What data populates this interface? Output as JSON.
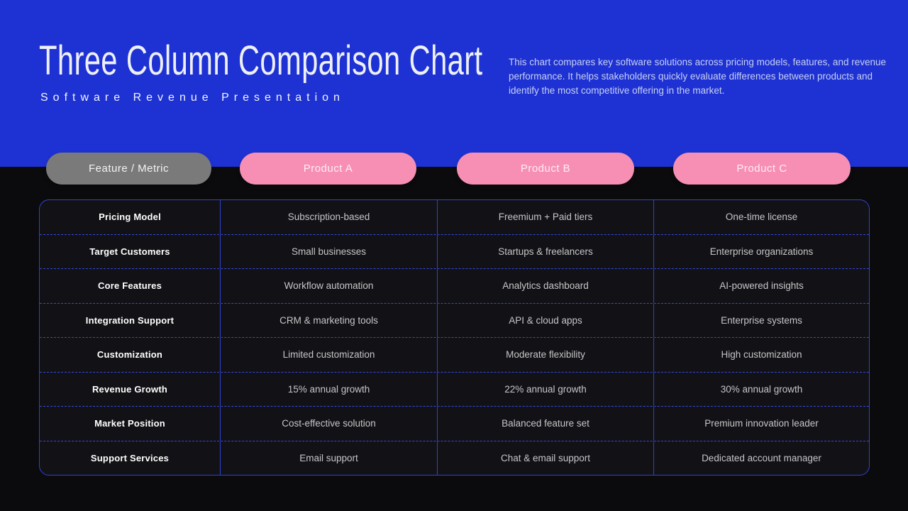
{
  "slide": {
    "title": "Three Column Comparison Chart",
    "subtitle": "Software Revenue Presentation",
    "description": "This chart compares key software solutions across pricing models, features, and revenue performance. It helps stakeholders quickly evaluate differences between products and identify the most competitive offering in the market."
  },
  "headers": {
    "feature": "Feature / Metric",
    "product_a": "Product A",
    "product_b": "Product B",
    "product_c": "Product C"
  },
  "chart_data": {
    "type": "table",
    "title": "Three Column Comparison Chart",
    "subtitle": "Software Revenue Presentation",
    "columns": [
      "Feature / Metric",
      "Product A",
      "Product B",
      "Product C"
    ],
    "rows": [
      [
        "Pricing Model",
        "Subscription-based",
        "Freemium + Paid tiers",
        "One-time license"
      ],
      [
        "Target Customers",
        "Small businesses",
        "Startups & freelancers",
        "Enterprise organizations"
      ],
      [
        "Core Features",
        "Workflow automation",
        "Analytics dashboard",
        "AI-powered insights"
      ],
      [
        "Integration Support",
        "CRM & marketing tools",
        "API & cloud apps",
        "Enterprise systems"
      ],
      [
        "Customization",
        "Limited customization",
        "Moderate flexibility",
        "High customization"
      ],
      [
        "Revenue Growth",
        "15% annual growth",
        "22% annual growth",
        "30% annual growth"
      ],
      [
        "Market Position",
        "Cost-effective solution",
        "Balanced feature set",
        "Premium innovation leader"
      ],
      [
        "Support Services",
        "Email support",
        "Chat & email support",
        "Dedicated account manager"
      ]
    ],
    "revenue_growth_percent": {
      "Product A": 15,
      "Product B": 22,
      "Product C": 30
    }
  },
  "colors": {
    "header_bg": "#1e32d3",
    "pill_pink": "#f78fb4",
    "pill_gray": "#7a7a7a",
    "table_border_blue": "#2e42d0",
    "row_divider_blue": "#3448d8",
    "page_bg": "#0b0b0d",
    "cell_bg": "#121216",
    "cell_text": "#c6c6c8",
    "description_text": "#c7cff2"
  }
}
